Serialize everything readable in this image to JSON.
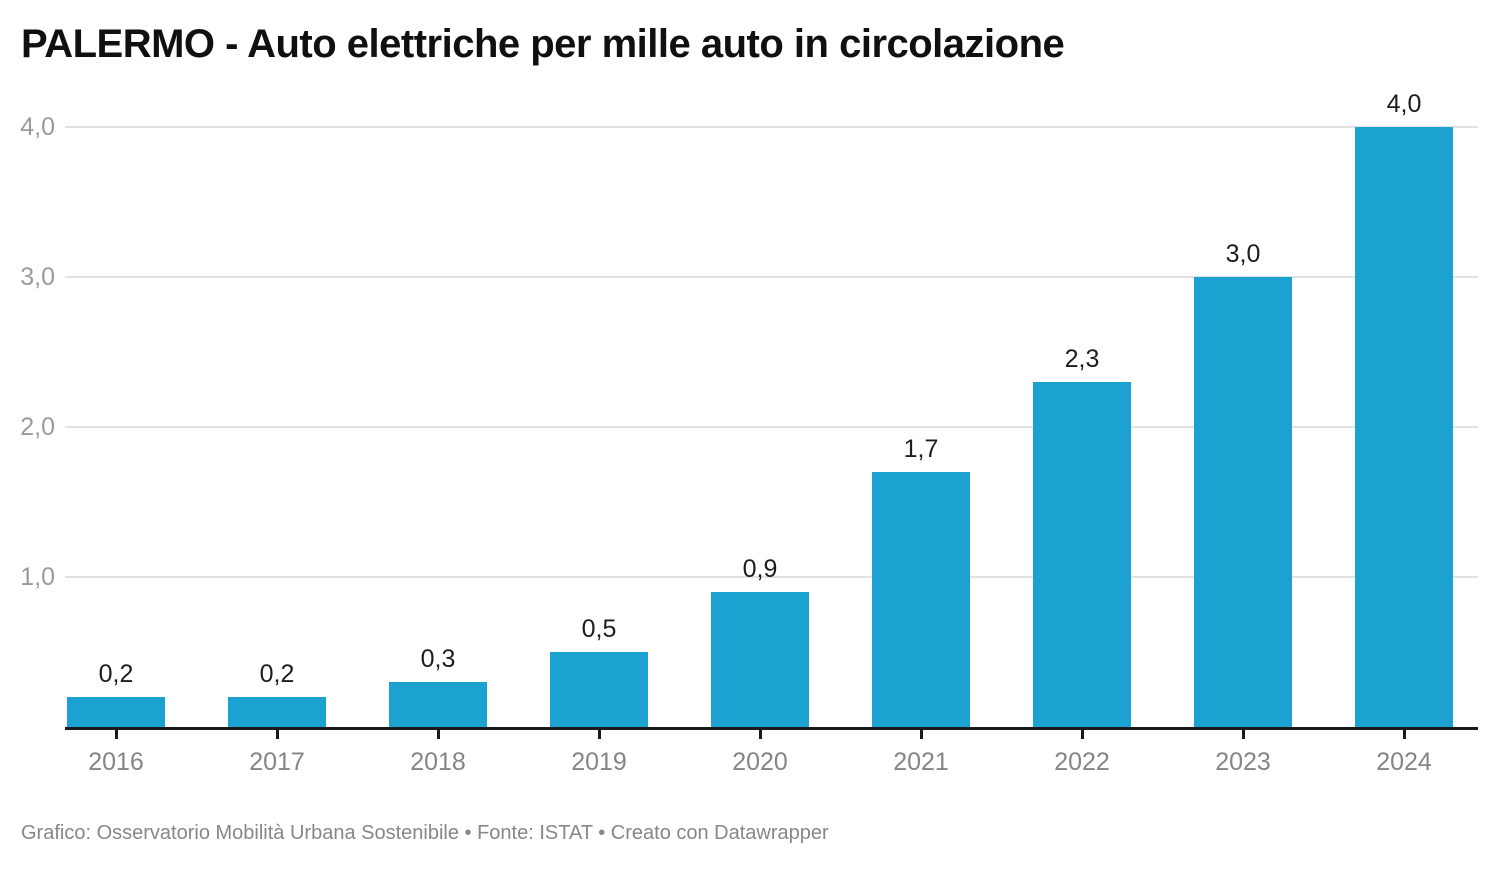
{
  "title": "PALERMO - Auto elettriche per mille auto in circolazione",
  "footer": "Grafico: Osservatorio Mobilità Urbana Sostenibile • Fonte: ISTAT • Creato con Datawrapper",
  "colors": {
    "bar": "#1ba2d0",
    "grid": "#e2e2e2",
    "axis": "#1a1a1e",
    "y_label": "#9b9b9b",
    "x_label": "#858585",
    "value_label": "#1d1d1d",
    "title": "#101010",
    "footer": "#878787",
    "background": "#ffffff"
  },
  "chart_data": {
    "type": "bar",
    "title": "PALERMO - Auto elettriche per mille auto in circolazione",
    "categories": [
      "2016",
      "2017",
      "2018",
      "2019",
      "2020",
      "2021",
      "2022",
      "2023",
      "2024"
    ],
    "values": [
      0.2,
      0.2,
      0.3,
      0.5,
      0.9,
      1.7,
      2.3,
      3.0,
      4.0
    ],
    "value_labels": [
      "0,2",
      "0,2",
      "0,3",
      "0,5",
      "0,9",
      "1,7",
      "2,3",
      "3,0",
      "4,0"
    ],
    "xlabel": "",
    "ylabel": "",
    "ylim": [
      0,
      4.3
    ],
    "yticks": [
      {
        "value": 1.0,
        "label": "1,0"
      },
      {
        "value": 2.0,
        "label": "2,0"
      },
      {
        "value": 3.0,
        "label": "3,0"
      },
      {
        "value": 4.0,
        "label": "4,0"
      }
    ],
    "grid": "horizontal-only",
    "legend": "none",
    "decimal_separator": ",",
    "bar_color": "#1ba2d0",
    "source_note": "Grafico: Osservatorio Mobilità Urbana Sostenibile • Fonte: ISTAT • Creato con Datawrapper"
  }
}
